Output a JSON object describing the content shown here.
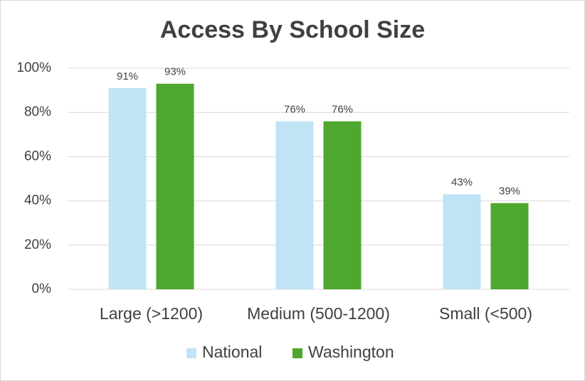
{
  "chart_data": {
    "type": "bar",
    "title": "Access By School Size",
    "categories": [
      "Large (>1200)",
      "Medium (500-1200)",
      "Small (<500)"
    ],
    "series": [
      {
        "name": "National",
        "color": "#c0e4f5",
        "values": [
          91,
          76,
          43
        ],
        "value_labels": [
          "91%",
          "76%",
          "43%"
        ]
      },
      {
        "name": "Washington",
        "color": "#4ea72e",
        "values": [
          93,
          76,
          39
        ],
        "value_labels": [
          "93%",
          "76%",
          "39%"
        ]
      }
    ],
    "ylim": [
      0,
      100
    ],
    "yticks": [
      {
        "value": 0,
        "label": "0%"
      },
      {
        "value": 20,
        "label": "20%"
      },
      {
        "value": 40,
        "label": "40%"
      },
      {
        "value": 60,
        "label": "60%"
      },
      {
        "value": 80,
        "label": "80%"
      },
      {
        "value": 100,
        "label": "100%"
      }
    ],
    "grid": true,
    "legend": "bottom"
  }
}
